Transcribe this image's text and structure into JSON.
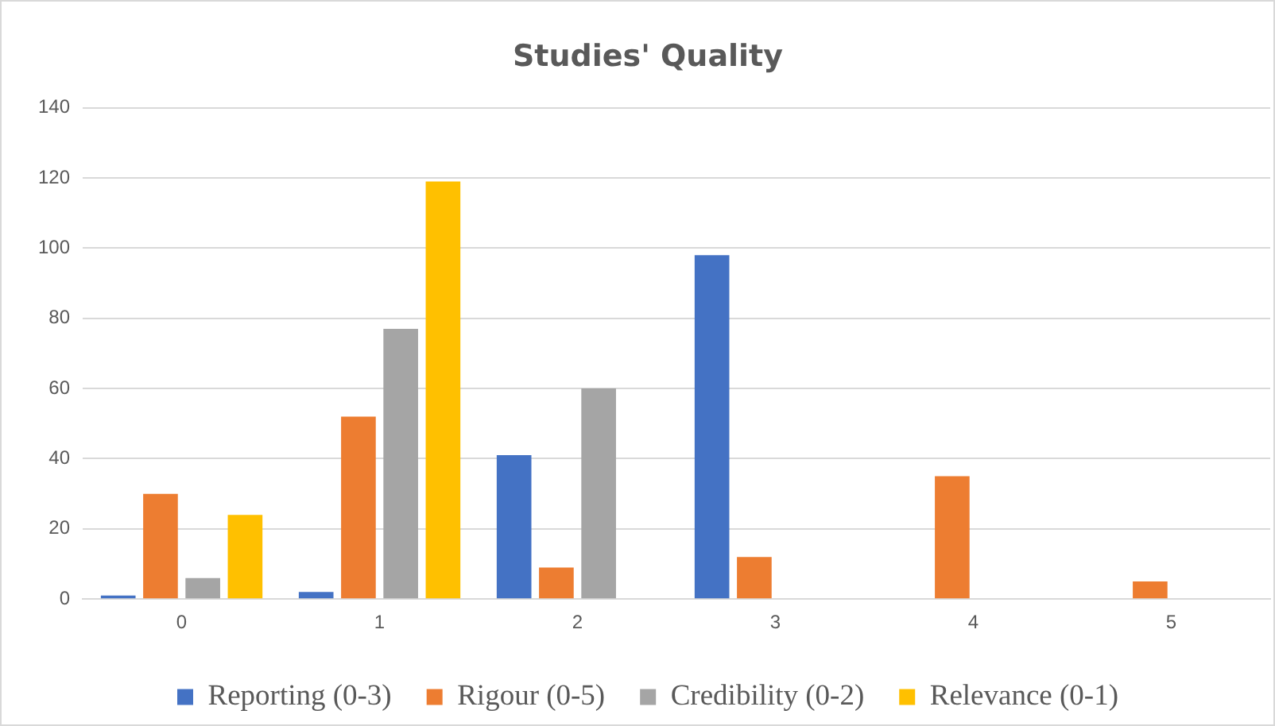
{
  "chart_data": {
    "type": "bar",
    "title": "Studies' Quality",
    "categories": [
      "0",
      "1",
      "2",
      "3",
      "4",
      "5"
    ],
    "series": [
      {
        "name": "Reporting (0-3)",
        "color": "#4472c4",
        "values": [
          1,
          2,
          41,
          98,
          0,
          0
        ]
      },
      {
        "name": "Rigour (0-5)",
        "color": "#ed7d31",
        "values": [
          30,
          52,
          9,
          12,
          35,
          5
        ]
      },
      {
        "name": "Credibility (0-2)",
        "color": "#a5a5a5",
        "values": [
          6,
          77,
          60,
          0,
          0,
          0
        ]
      },
      {
        "name": "Relevance (0-1)",
        "color": "#ffc000",
        "values": [
          24,
          119,
          0,
          0,
          0,
          0
        ]
      }
    ],
    "ylim": [
      0,
      140
    ],
    "yticks": [
      0,
      20,
      40,
      60,
      80,
      100,
      120,
      140
    ],
    "grid": "y",
    "legend": "bottom"
  }
}
